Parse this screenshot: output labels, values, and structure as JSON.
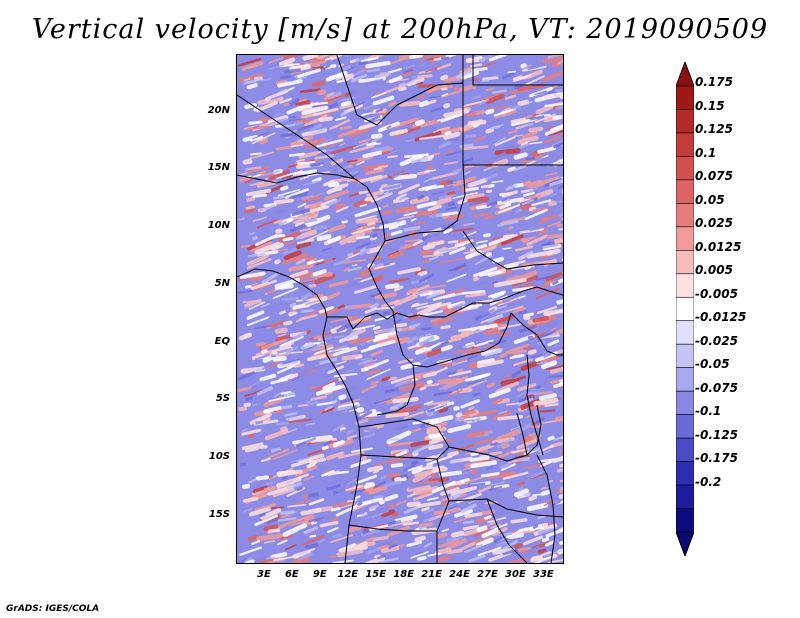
{
  "title": "Vertical velocity [m/s] at 200hPa, VT: 2019090509",
  "credit": "GrADS: IGES/COLA",
  "lat_labels": [
    "20N",
    "15N",
    "10N",
    "5N",
    "EQ",
    "5S",
    "10S",
    "15S"
  ],
  "lon_labels": [
    "3E",
    "6E",
    "9E",
    "12E",
    "15E",
    "18E",
    "21E",
    "24E",
    "27E",
    "30E",
    "33E"
  ],
  "colorbar": {
    "labels": [
      "0.175",
      "0.15",
      "0.125",
      "0.1",
      "0.075",
      "0.05",
      "0.025",
      "0.0125",
      "0.005",
      "-0.005",
      "-0.0125",
      "-0.025",
      "-0.05",
      "-0.075",
      "-0.1",
      "-0.125",
      "-0.175",
      "-0.2"
    ],
    "colors": [
      "#a01818",
      "#b42a2a",
      "#c33c3c",
      "#d25050",
      "#dc6464",
      "#e67d7d",
      "#f09a9a",
      "#f7bcbc",
      "#fde0e0",
      "#ffffff",
      "#e0e0fc",
      "#c4c4f5",
      "#a8a8ee",
      "#8888e4",
      "#6b6bd8",
      "#4b4bc8",
      "#2d2db4",
      "#1c1c9c",
      "#0c0c80"
    ],
    "top_arrow_color": "#8c1010",
    "bottom_arrow_color": "#0a0a70"
  },
  "map": {
    "lon_range": [
      0,
      35
    ],
    "lat_range": [
      -19,
      25
    ],
    "dominant_positive": "#e88888",
    "dominant_negative": "#8c8ce6"
  }
}
